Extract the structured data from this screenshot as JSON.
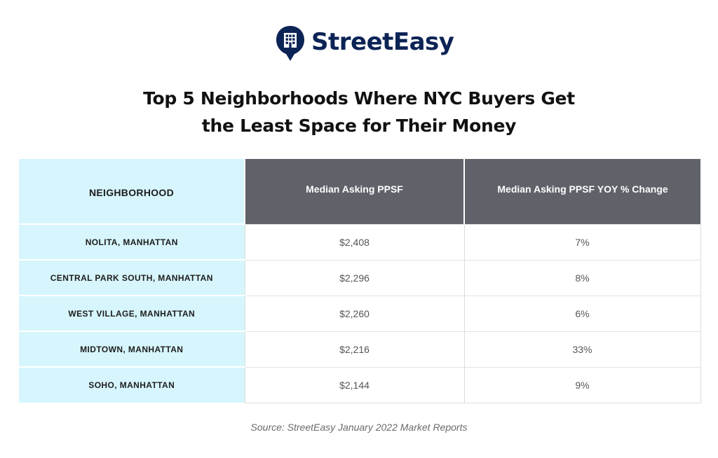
{
  "brand": {
    "name": "StreetEasy",
    "color": "#0c2355"
  },
  "chart_data": {
    "type": "table",
    "title": "Top 5 Neighborhoods Where NYC Buyers Get the Least Space for Their Money",
    "title_lines": [
      "Top 5 Neighborhoods Where NYC Buyers Get",
      "the Least Space for Their Money"
    ],
    "columns": [
      "NEIGHBORHOOD",
      "Median Asking PPSF",
      "Median Asking PPSF YOY % Change"
    ],
    "rows": [
      {
        "neighborhood": "NOLITA, MANHATTAN",
        "ppsf": "$2,408",
        "yoy": "7%"
      },
      {
        "neighborhood": "CENTRAL PARK SOUTH, MANHATTAN",
        "ppsf": "$2,296",
        "yoy": "8%"
      },
      {
        "neighborhood": "WEST VILLAGE, MANHATTAN",
        "ppsf": "$2,260",
        "yoy": "6%"
      },
      {
        "neighborhood": "MIDTOWN, MANHATTAN",
        "ppsf": "$2,216",
        "yoy": "33%"
      },
      {
        "neighborhood": "SOHO, MANHATTAN",
        "ppsf": "$2,144",
        "yoy": "9%"
      }
    ],
    "source": "Source: StreetEasy January 2022 Market Reports",
    "colors": {
      "neighborhood_column": "#d6f5fc",
      "header_dark": "#606269",
      "title_text": "#111111"
    }
  }
}
